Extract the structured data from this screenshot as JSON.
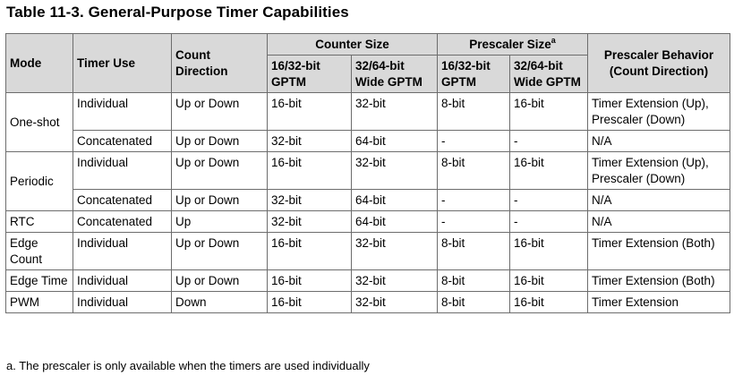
{
  "title": "Table 11-3. General-Purpose Timer Capabilities",
  "header": {
    "mode": "Mode",
    "timer_use": "Timer Use",
    "count_direction": "Count Direction",
    "counter_size": "Counter Size",
    "prescaler_size": "Prescaler Size",
    "prescaler_size_note": "a",
    "prescaler_behavior": "Prescaler Behavior (Count Direction)",
    "cs_16_32": "16/32-bit GPTM",
    "cs_32_64": "32/64-bit Wide GPTM",
    "ps_16_32": "16/32-bit GPTM",
    "ps_32_64": "32/64-bit Wide GPTM"
  },
  "rows": {
    "one_shot": {
      "mode": "One-shot",
      "r1": {
        "use": "Individual",
        "dir": "Up or Down",
        "cs1": "16-bit",
        "cs2": "32-bit",
        "ps1": "8-bit",
        "ps2": "16-bit",
        "beh": "Timer Extension (Up), Prescaler (Down)"
      },
      "r2": {
        "use": "Concatenated",
        "dir": "Up or Down",
        "cs1": "32-bit",
        "cs2": "64-bit",
        "ps1": "-",
        "ps2": "-",
        "beh": "N/A"
      }
    },
    "periodic": {
      "mode": "Periodic",
      "r1": {
        "use": "Individual",
        "dir": "Up or Down",
        "cs1": "16-bit",
        "cs2": "32-bit",
        "ps1": "8-bit",
        "ps2": "16-bit",
        "beh": "Timer Extension (Up), Prescaler (Down)"
      },
      "r2": {
        "use": "Concatenated",
        "dir": "Up or Down",
        "cs1": "32-bit",
        "cs2": "64-bit",
        "ps1": "-",
        "ps2": "-",
        "beh": "N/A"
      }
    },
    "rtc": {
      "mode": "RTC",
      "use": "Concatenated",
      "dir": "Up",
      "cs1": "32-bit",
      "cs2": "64-bit",
      "ps1": "-",
      "ps2": "-",
      "beh": "N/A"
    },
    "edge_count": {
      "mode": "Edge Count",
      "use": "Individual",
      "dir": "Up or Down",
      "cs1": "16-bit",
      "cs2": "32-bit",
      "ps1": "8-bit",
      "ps2": "16-bit",
      "beh": "Timer Extension (Both)"
    },
    "edge_time": {
      "mode": "Edge Time",
      "use": "Individual",
      "dir": "Up or Down",
      "cs1": "16-bit",
      "cs2": "32-bit",
      "ps1": "8-bit",
      "ps2": "16-bit",
      "beh": "Timer Extension (Both)"
    },
    "pwm": {
      "mode": "PWM",
      "use": "Individual",
      "dir": "Down",
      "cs1": "16-bit",
      "cs2": "32-bit",
      "ps1": "8-bit",
      "ps2": "16-bit",
      "beh": "Timer Extension"
    }
  },
  "footnote": "a. The prescaler is only available when the timers are used individually"
}
